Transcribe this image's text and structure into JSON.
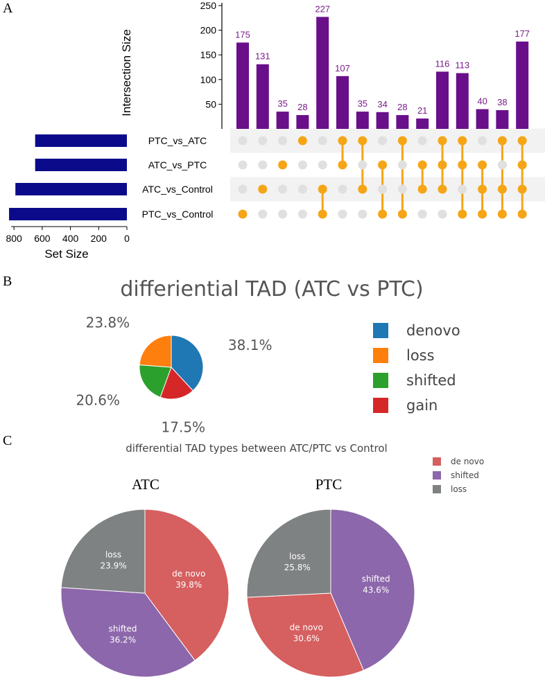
{
  "panel_labels": {
    "a": "A",
    "b": "B",
    "c": "C"
  },
  "chart_data": [
    {
      "type": "upset",
      "ylabel": "Intersection Size",
      "xlabel": "Set Size",
      "ylim": [
        0,
        250
      ],
      "yticks": [
        50,
        100,
        150,
        200,
        250
      ],
      "set_size_ticks": [
        800,
        600,
        400,
        200,
        0
      ],
      "set_size_max": 850,
      "sets": [
        "PTC_vs_ATC",
        "ATC_vs_PTC",
        "ATC_vs_Control",
        "PTC_vs_Control"
      ],
      "set_sizes": [
        650,
        650,
        790,
        835
      ],
      "intersections": [
        {
          "value": 175,
          "members": [
            3
          ]
        },
        {
          "value": 131,
          "members": [
            2
          ]
        },
        {
          "value": 35,
          "members": [
            1
          ]
        },
        {
          "value": 28,
          "members": [
            0
          ]
        },
        {
          "value": 227,
          "members": [
            2,
            3
          ]
        },
        {
          "value": 107,
          "members": [
            0,
            1
          ]
        },
        {
          "value": 35,
          "members": [
            0,
            2
          ]
        },
        {
          "value": 34,
          "members": [
            1,
            3
          ]
        },
        {
          "value": 28,
          "members": [
            0,
            3
          ]
        },
        {
          "value": 21,
          "members": [
            1,
            2
          ]
        },
        {
          "value": 116,
          "members": [
            0,
            1,
            2
          ]
        },
        {
          "value": 113,
          "members": [
            0,
            1,
            3
          ]
        },
        {
          "value": 40,
          "members": [
            1,
            2,
            3
          ]
        },
        {
          "value": 38,
          "members": [
            0,
            2,
            3
          ]
        },
        {
          "value": 177,
          "members": [
            0,
            1,
            2,
            3
          ]
        }
      ],
      "colors": {
        "bars": "#6a0f8a",
        "set_bars": "#0a0a8a",
        "dots_on": "#f5a516",
        "dots_off": "#e0e0e0",
        "labels": "#7a1a8a"
      }
    },
    {
      "type": "pie",
      "title": "differiential TAD (ATC vs PTC)",
      "labels": [
        "denovo",
        "loss",
        "shifted",
        "gain"
      ],
      "values": [
        38.1,
        23.8,
        20.6,
        17.5
      ],
      "pct_labels": [
        "38.1%",
        "23.8%",
        "20.6%",
        "17.5%"
      ],
      "colors": [
        "#1f77b4",
        "#ff7f0e",
        "#2ca02c",
        "#d62728"
      ]
    },
    {
      "type": "pie",
      "title": "differential TAD types between ATC/PTC vs Control",
      "legend": [
        "de novo",
        "shifted",
        "loss"
      ],
      "legend_colors": [
        "#d65f5f",
        "#8c67ab",
        "#7f8282"
      ],
      "pies": [
        {
          "subtitle": "ATC",
          "slices": [
            {
              "label": "de novo",
              "value": 39.8,
              "pct": "39.8%",
              "color": "#d65f5f"
            },
            {
              "label": "shifted",
              "value": 36.2,
              "pct": "36.2%",
              "color": "#8c67ab"
            },
            {
              "label": "loss",
              "value": 23.9,
              "pct": "23.9%",
              "color": "#7f8282"
            }
          ]
        },
        {
          "subtitle": "PTC",
          "slices": [
            {
              "label": "shifted",
              "value": 43.6,
              "pct": "43.6%",
              "color": "#8c67ab"
            },
            {
              "label": "de novo",
              "value": 30.6,
              "pct": "30.6%",
              "color": "#d65f5f"
            },
            {
              "label": "loss",
              "value": 25.8,
              "pct": "25.8%",
              "color": "#7f8282"
            }
          ]
        }
      ]
    }
  ]
}
